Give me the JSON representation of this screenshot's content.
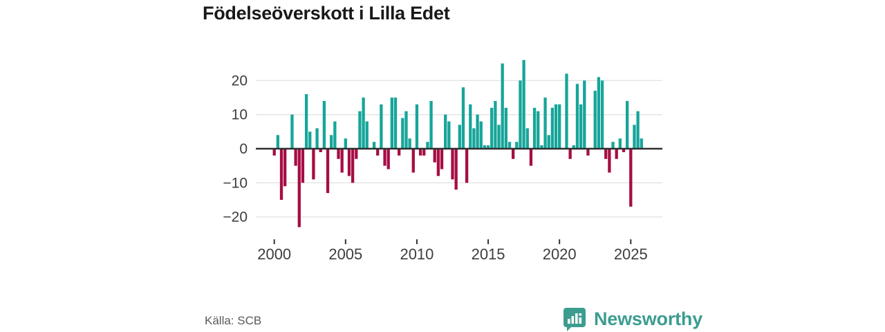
{
  "title": "Födelseöverskott i Lilla Edet",
  "source": "Källa: SCB",
  "brand": {
    "name": "Newsworthy",
    "color": "#3C9D8F",
    "icon": "bar-chart-speech-bubble-icon"
  },
  "chart_data": {
    "type": "bar",
    "title": "Födelseöverskott i Lilla Edet",
    "xlabel": "",
    "ylabel": "",
    "frequency": "quarterly",
    "start_year": 2000,
    "end_year": 2025,
    "values": [
      -2,
      4,
      -15,
      -11,
      0,
      10,
      -5,
      -23,
      -10,
      16,
      5,
      -9,
      6,
      -1,
      14,
      -13,
      4,
      8,
      -3,
      -7,
      3,
      -8,
      -10,
      -3,
      11,
      15,
      8,
      0,
      2,
      -2,
      13,
      -5,
      -6,
      15,
      15,
      -2,
      9,
      11,
      3,
      -7,
      13,
      -2,
      -2,
      2,
      14,
      -4,
      -8,
      -6,
      10,
      8,
      -9,
      -12,
      7,
      18,
      -10,
      13,
      6,
      10,
      8,
      1,
      1,
      12,
      14,
      7,
      25,
      12,
      2,
      -3,
      2,
      20,
      26,
      6,
      -5,
      12,
      11,
      1,
      15,
      4,
      12,
      13,
      13,
      0,
      22,
      -3,
      1,
      19,
      13,
      20,
      -2,
      0,
      17,
      21,
      20,
      -3,
      -7,
      2,
      -3,
      3,
      -1,
      14,
      -17,
      7,
      11,
      3
    ],
    "xticks": [
      2000,
      2005,
      2010,
      2015,
      2020,
      2025
    ],
    "xtick_labels": [
      "2000",
      "2005",
      "2010",
      "2015",
      "2020",
      "2025"
    ],
    "yticks": [
      20,
      10,
      0,
      -10,
      -20
    ],
    "ytick_labels": [
      "20",
      "10",
      "0",
      "−10",
      "−20"
    ],
    "ylim": [
      -25,
      28
    ],
    "grid": true,
    "legend": "none",
    "colors": {
      "positive": "#16A59A",
      "negative": "#A60D44",
      "zero_line": "#2F2F2F",
      "grid_line": "#E2E2E2",
      "tick_text": "#3D3D3D"
    }
  }
}
